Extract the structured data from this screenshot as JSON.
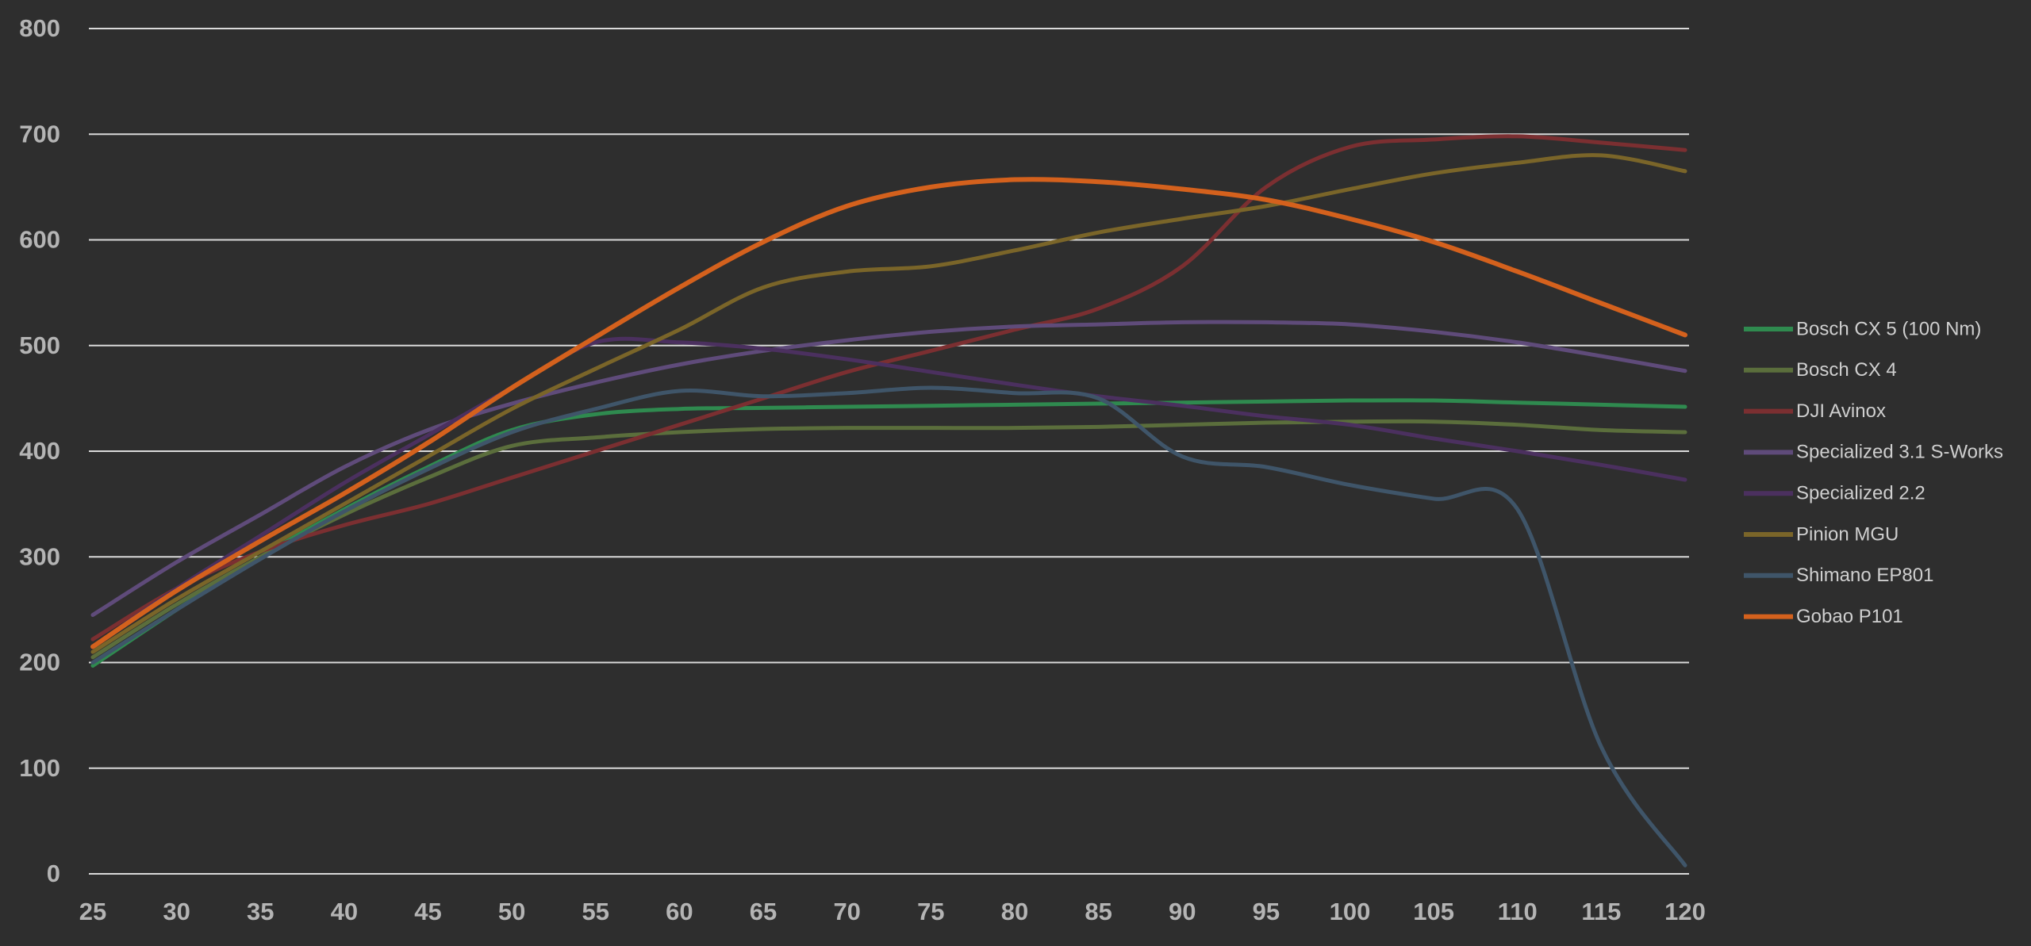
{
  "chart_data": {
    "type": "line",
    "x": [
      25,
      30,
      35,
      40,
      45,
      50,
      55,
      60,
      65,
      70,
      75,
      80,
      85,
      90,
      95,
      100,
      105,
      110,
      115,
      120
    ],
    "xlim": [
      25,
      120
    ],
    "xticks": [
      25,
      30,
      35,
      40,
      45,
      50,
      55,
      60,
      65,
      70,
      75,
      80,
      85,
      90,
      95,
      100,
      105,
      110,
      115,
      120
    ],
    "ylim": [
      0,
      800
    ],
    "yticks": [
      0,
      100,
      200,
      300,
      400,
      500,
      600,
      700,
      800
    ],
    "grid": true,
    "legend": "right",
    "series": [
      {
        "name": "Bosch CX 5 (100 Nm)",
        "color": "#2f8a4f",
        "values": [
          197,
          250,
          300,
          345,
          385,
          420,
          435,
          440,
          441,
          442,
          443,
          444,
          445,
          446,
          447,
          448,
          448,
          446,
          444,
          442
        ]
      },
      {
        "name": "Bosch CX 4",
        "color": "#5b6e3c",
        "values": [
          205,
          255,
          300,
          340,
          375,
          405,
          413,
          418,
          421,
          422,
          422,
          422,
          423,
          425,
          427,
          428,
          428,
          425,
          420,
          418
        ]
      },
      {
        "name": "DJI Avinox",
        "color": "#7b2f31",
        "values": [
          222,
          270,
          305,
          330,
          350,
          375,
          400,
          425,
          450,
          475,
          495,
          515,
          535,
          575,
          650,
          688,
          695,
          698,
          692,
          685
        ]
      },
      {
        "name": "Specialized 3.1 S-Works",
        "color": "#5f4b7a",
        "values": [
          245,
          295,
          340,
          385,
          420,
          445,
          465,
          482,
          495,
          505,
          513,
          518,
          520,
          522,
          522,
          520,
          513,
          503,
          490,
          476
        ]
      },
      {
        "name": "Specialized 2.2",
        "color": "#4b305f",
        "values": [
          215,
          270,
          320,
          370,
          415,
          460,
          503,
          503,
          497,
          487,
          475,
          463,
          452,
          443,
          433,
          425,
          412,
          400,
          387,
          373
        ]
      },
      {
        "name": "Pinion MGU",
        "color": "#7a6529",
        "values": [
          210,
          260,
          305,
          350,
          395,
          440,
          478,
          515,
          555,
          570,
          575,
          590,
          607,
          620,
          632,
          648,
          663,
          673,
          680,
          665
        ]
      },
      {
        "name": "Shimano EP801",
        "color": "#3f5569",
        "values": [
          200,
          250,
          298,
          343,
          383,
          418,
          440,
          457,
          452,
          455,
          460,
          455,
          450,
          395,
          385,
          368,
          355,
          345,
          120,
          8
        ]
      },
      {
        "name": "Gobao P101",
        "color": "#d4611d",
        "values": [
          215,
          268,
          315,
          360,
          408,
          460,
          508,
          555,
          598,
          632,
          650,
          657,
          655,
          648,
          638,
          620,
          598,
          570,
          540,
          510
        ]
      }
    ]
  }
}
